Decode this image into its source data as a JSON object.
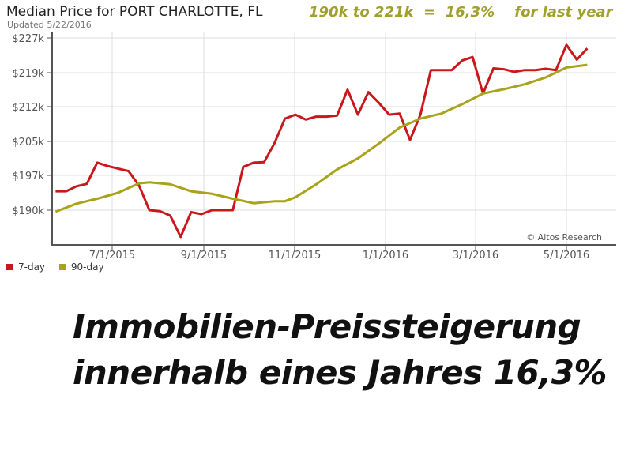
{
  "header": {
    "title": "Median Price for PORT CHARLOTTE, FL",
    "annotation": "190k to 221k  =  16,3%    for last year",
    "updated": "Updated 5/22/2016"
  },
  "chart_data": {
    "type": "line",
    "title": "Median Price for PORT CHARLOTTE, FL",
    "xlabel": "",
    "ylabel": "",
    "x_tick_labels": [
      "7/1/2015",
      "9/1/2015",
      "11/1/2015",
      "1/1/2016",
      "3/1/2016",
      "5/1/2016"
    ],
    "y_tick_labels": [
      "$190k",
      "$197k",
      "$205k",
      "$212k",
      "$219k",
      "$227k"
    ],
    "ylim": [
      182,
      227
    ],
    "grid": true,
    "legend_position": "bottom-left",
    "watermark": "© Altos Research",
    "series": [
      {
        "name": "7-day",
        "color": "#c8181b",
        "values": [
          [
            "2015-05-24",
            193.8
          ],
          [
            "2015-05-31",
            193.8
          ],
          [
            "2015-06-07",
            194.8
          ],
          [
            "2015-06-14",
            195.3
          ],
          [
            "2015-06-21",
            200.0
          ],
          [
            "2015-06-28",
            199.2
          ],
          [
            "2015-07-05",
            198.6
          ],
          [
            "2015-07-12",
            198.0
          ],
          [
            "2015-07-19",
            195.0
          ],
          [
            "2015-07-26",
            190.0
          ],
          [
            "2015-08-02",
            189.8
          ],
          [
            "2015-08-09",
            188.9
          ],
          [
            "2015-08-16",
            184.6
          ],
          [
            "2015-08-23",
            189.6
          ],
          [
            "2015-08-30",
            189.2
          ],
          [
            "2015-09-06",
            190.0
          ],
          [
            "2015-09-13",
            190.0
          ],
          [
            "2015-09-20",
            190.0
          ],
          [
            "2015-09-27",
            199.0
          ],
          [
            "2015-10-04",
            200.0
          ],
          [
            "2015-10-11",
            200.1
          ],
          [
            "2015-10-18",
            204.6
          ],
          [
            "2015-10-25",
            209.6
          ],
          [
            "2015-11-01",
            210.4
          ],
          [
            "2015-11-08",
            209.4
          ],
          [
            "2015-11-15",
            210.0
          ],
          [
            "2015-11-22",
            210.0
          ],
          [
            "2015-11-29",
            210.2
          ],
          [
            "2015-12-06",
            215.5
          ],
          [
            "2015-12-13",
            210.4
          ],
          [
            "2015-12-20",
            215.0
          ],
          [
            "2015-12-27",
            212.8
          ],
          [
            "2016-01-03",
            210.4
          ],
          [
            "2016-01-10",
            210.6
          ],
          [
            "2016-01-17",
            205.3
          ],
          [
            "2016-01-24",
            210.4
          ],
          [
            "2016-01-31",
            219.6
          ],
          [
            "2016-02-07",
            219.6
          ],
          [
            "2016-02-14",
            219.6
          ],
          [
            "2016-02-21",
            221.8
          ],
          [
            "2016-02-28",
            222.6
          ],
          [
            "2016-03-06",
            214.7
          ],
          [
            "2016-03-13",
            220.0
          ],
          [
            "2016-03-20",
            219.8
          ],
          [
            "2016-03-27",
            219.2
          ],
          [
            "2016-04-03",
            219.6
          ],
          [
            "2016-04-10",
            219.6
          ],
          [
            "2016-04-17",
            219.9
          ],
          [
            "2016-04-24",
            219.6
          ],
          [
            "2016-05-01",
            225.4
          ],
          [
            "2016-05-08",
            222.0
          ],
          [
            "2016-05-15",
            224.6
          ]
        ]
      },
      {
        "name": "90-day",
        "color": "#a8a31b",
        "values": [
          [
            "2015-05-24",
            189.7
          ],
          [
            "2015-06-07",
            191.3
          ],
          [
            "2015-06-21",
            192.3
          ],
          [
            "2015-07-05",
            193.5
          ],
          [
            "2015-07-19",
            195.4
          ],
          [
            "2015-07-26",
            195.6
          ],
          [
            "2015-08-09",
            195.2
          ],
          [
            "2015-08-23",
            193.8
          ],
          [
            "2015-09-06",
            193.3
          ],
          [
            "2015-09-20",
            192.3
          ],
          [
            "2015-10-04",
            191.4
          ],
          [
            "2015-10-18",
            191.8
          ],
          [
            "2015-10-25",
            191.8
          ],
          [
            "2015-11-01",
            192.6
          ],
          [
            "2015-11-15",
            195.2
          ],
          [
            "2015-11-29",
            198.4
          ],
          [
            "2015-12-13",
            201.0
          ],
          [
            "2015-12-27",
            204.5
          ],
          [
            "2016-01-10",
            207.8
          ],
          [
            "2016-01-24",
            209.6
          ],
          [
            "2016-02-07",
            210.6
          ],
          [
            "2016-02-21",
            212.5
          ],
          [
            "2016-03-06",
            214.7
          ],
          [
            "2016-03-20",
            215.6
          ],
          [
            "2016-04-03",
            216.6
          ],
          [
            "2016-04-17",
            218.0
          ],
          [
            "2016-05-01",
            220.2
          ],
          [
            "2016-05-15",
            220.8
          ]
        ]
      }
    ]
  },
  "legend": {
    "items": [
      {
        "label": "7-day",
        "color": "#c8181b"
      },
      {
        "label": "90-day",
        "color": "#a8a31b"
      }
    ]
  },
  "headline": {
    "line1": "Immobilien-Preissteigerung",
    "line2": "innerhalb eines Jahres 16,3%"
  }
}
